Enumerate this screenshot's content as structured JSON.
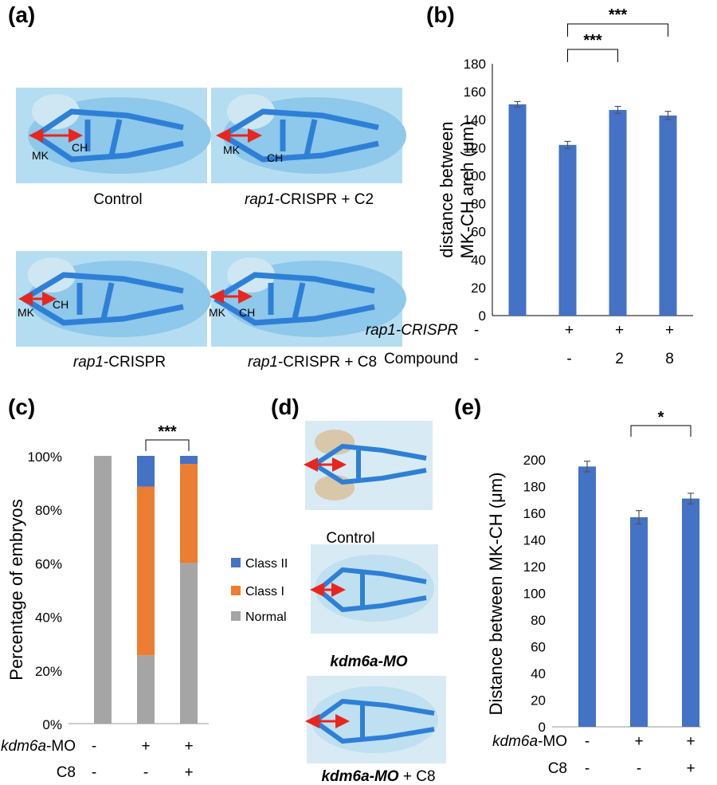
{
  "colors": {
    "bar_blue": "#4472C4",
    "class2": "#4472C4",
    "class1": "#ED7D31",
    "normal": "#A5A5A5",
    "arrow": "#E8261E",
    "cartilage": "#2E7FD6",
    "stain_bg": "#9CCFEA"
  },
  "panel_labels": {
    "a": "(a)",
    "b": "(b)",
    "c": "(c)",
    "d": "(d)",
    "e": "(e)"
  },
  "panel_a": {
    "images": [
      {
        "caption": "Control",
        "mk": "MK",
        "ch": "CH"
      },
      {
        "caption_italic": "rap1",
        "caption_rest": "-CRISPR + C2",
        "mk": "MK",
        "ch": "CH"
      },
      {
        "caption_italic": "rap1",
        "caption_rest": "-CRISPR",
        "mk": "MK",
        "ch": "CH"
      },
      {
        "caption_italic": "rap1",
        "caption_rest": "-CRISPR + C8",
        "mk": "MK",
        "ch": "CH"
      }
    ]
  },
  "panel_d": {
    "captions": [
      "Control",
      "kdm6a-MO",
      "kdm6a-MO + C8"
    ]
  },
  "legend_c": [
    "Class II",
    "Class I",
    "Normal"
  ],
  "chart_data": [
    {
      "id": "b",
      "type": "bar",
      "ylabel_line1": "distance between",
      "ylabel_line2": "MK-CH arch (μm)",
      "ylim": [
        0,
        180
      ],
      "yticks": [
        0,
        20,
        40,
        60,
        80,
        100,
        120,
        140,
        160,
        180
      ],
      "values": [
        151,
        122,
        147,
        143
      ],
      "errors": [
        2,
        2.5,
        2.5,
        3
      ],
      "rows": [
        {
          "label": "rap1-CRISPR",
          "italic": true,
          "cells": [
            "-",
            "+",
            "+",
            "+"
          ]
        },
        {
          "label": "Compound",
          "italic": false,
          "cells": [
            "-",
            "-",
            "2",
            "8"
          ]
        }
      ],
      "significance": [
        {
          "from": 1,
          "to": 2,
          "label": "***"
        },
        {
          "from": 1,
          "to": 3,
          "label": "***"
        }
      ]
    },
    {
      "id": "c",
      "type": "bar",
      "stacked": true,
      "ylabel": "Percentage of embryos",
      "ylim": [
        0,
        100
      ],
      "yticks": [
        "0%",
        "20%",
        "40%",
        "60%",
        "80%",
        "100%"
      ],
      "series": [
        {
          "name": "Normal",
          "values": [
            100,
            25.5,
            60
          ]
        },
        {
          "name": "Class I",
          "values": [
            0,
            63,
            37
          ]
        },
        {
          "name": "Class II",
          "values": [
            0,
            11.5,
            3
          ]
        }
      ],
      "rows": [
        {
          "label_italic": "kdm6a",
          "label_rest": "-MO",
          "cells": [
            "-",
            "+",
            "+"
          ]
        },
        {
          "label_italic": "",
          "label_rest": "C8",
          "cells": [
            "-",
            "-",
            "+"
          ]
        }
      ],
      "significance": [
        {
          "from": 1,
          "to": 2,
          "label": "***"
        }
      ]
    },
    {
      "id": "e",
      "type": "bar",
      "ylabel": "Distance between MK-CH (μm)",
      "ylim": [
        0,
        200
      ],
      "yticks": [
        0,
        20,
        40,
        60,
        80,
        100,
        120,
        140,
        160,
        180,
        200
      ],
      "values": [
        195,
        157,
        171
      ],
      "errors": [
        4,
        5,
        4
      ],
      "rows": [
        {
          "label_italic": "kdm6a",
          "label_rest": "-MO",
          "cells": [
            "-",
            "+",
            "+"
          ]
        },
        {
          "label_italic": "",
          "label_rest": "C8",
          "cells": [
            "-",
            "-",
            "+"
          ]
        }
      ],
      "significance": [
        {
          "from": 1,
          "to": 2,
          "label": "*"
        }
      ]
    }
  ]
}
